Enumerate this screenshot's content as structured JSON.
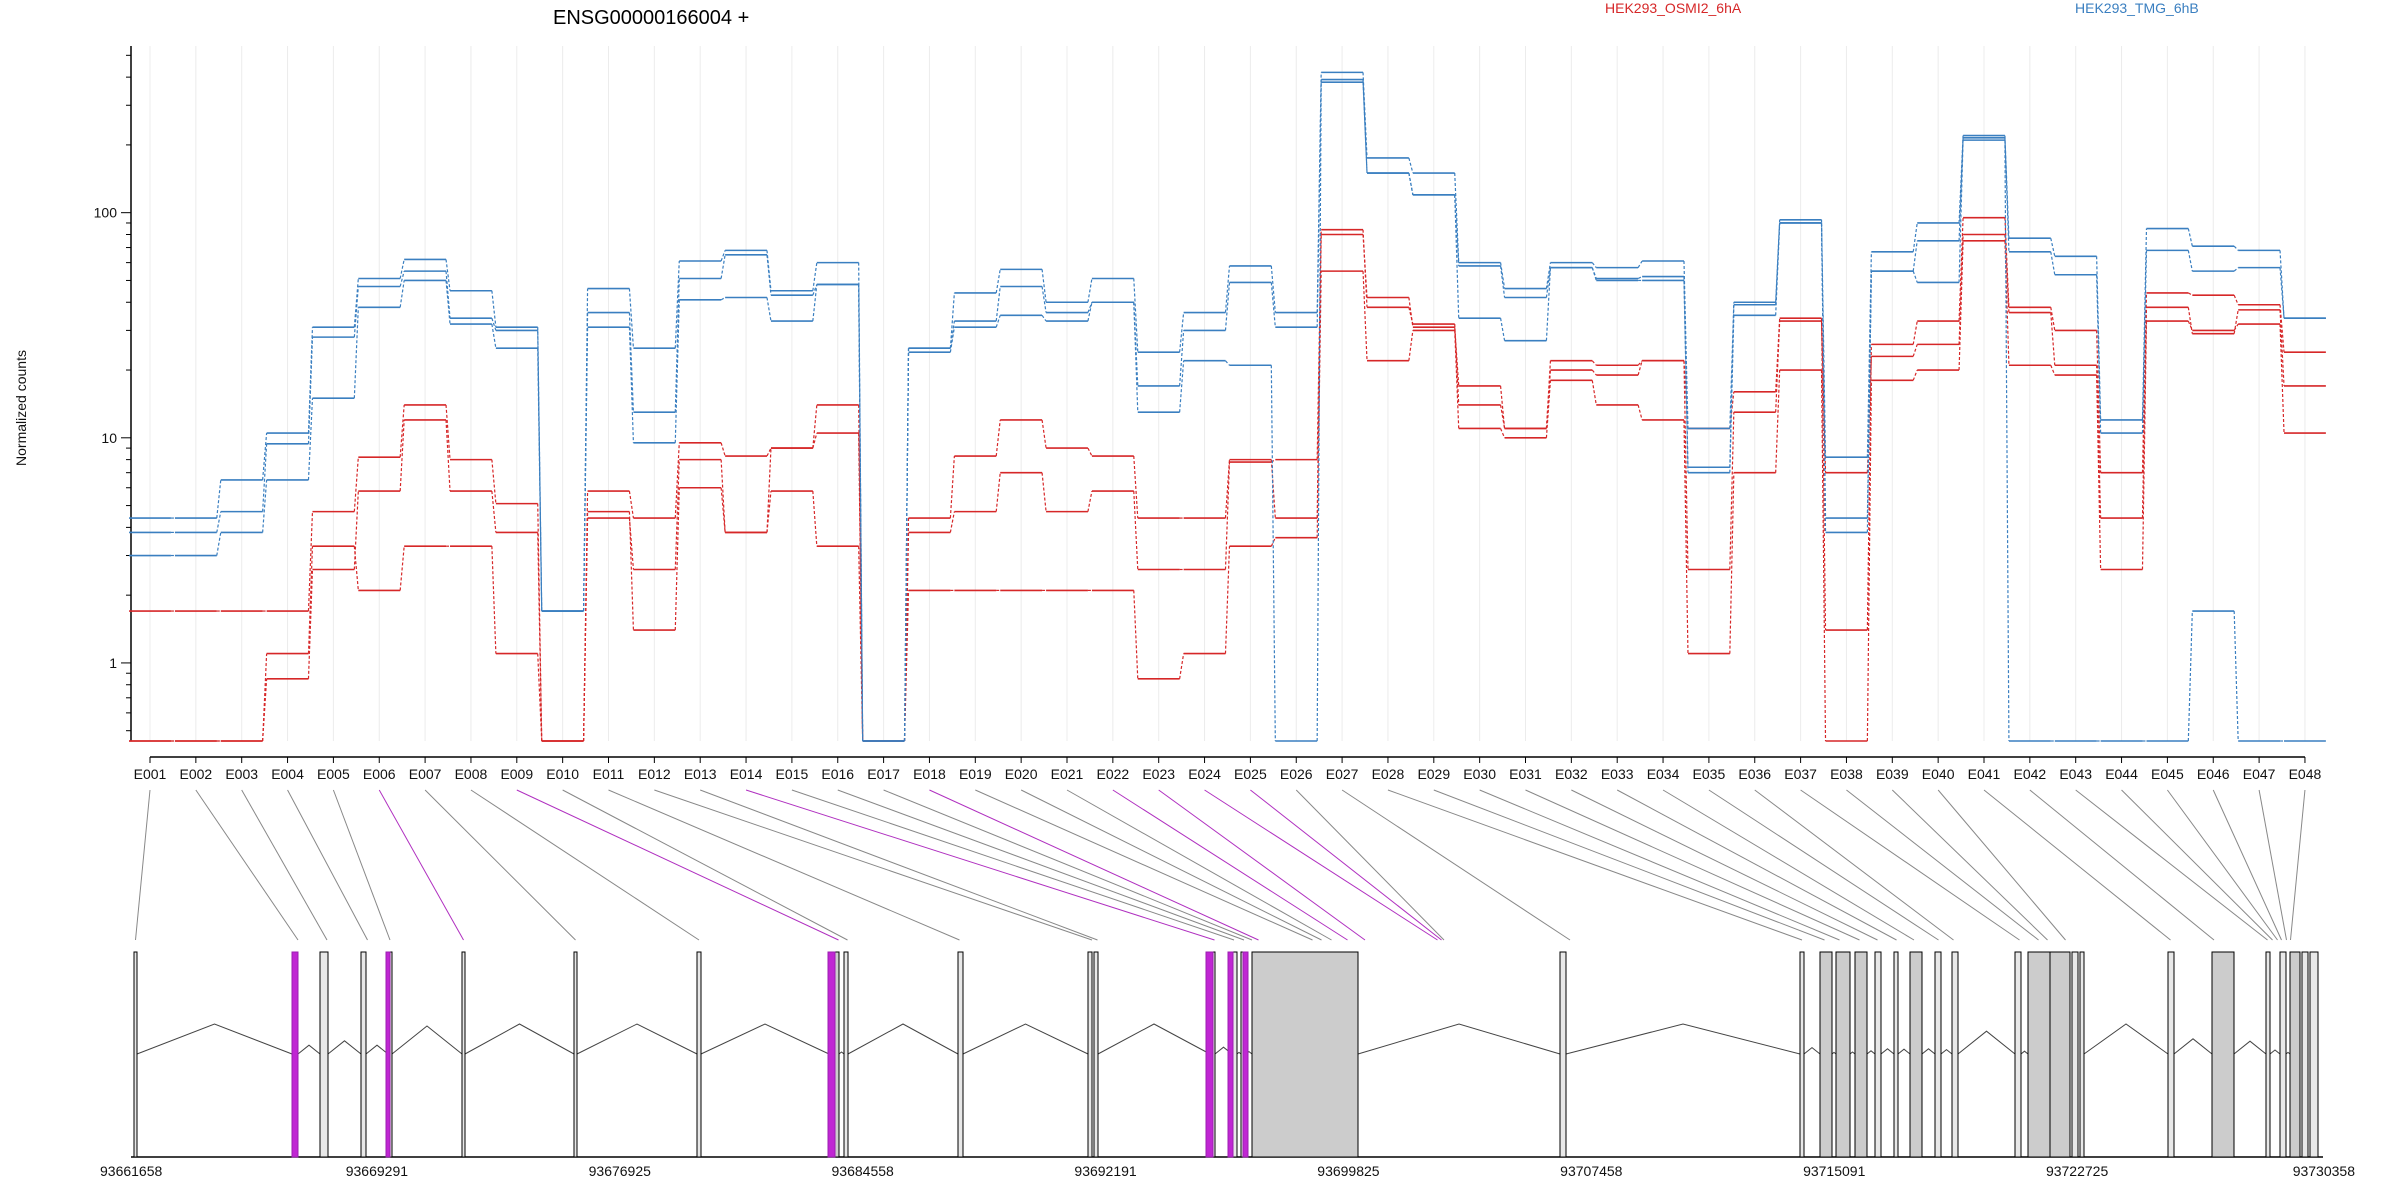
{
  "chart_data": {
    "type": "line",
    "title": "ENSG00000166004 +",
    "ylabel": "Normalized counts",
    "xlabel": "",
    "yscale": "log",
    "ylim": [
      0.45,
      550
    ],
    "yticks": [
      "1",
      "10",
      "100"
    ],
    "grid": true,
    "legend": [
      {
        "name": "HEK293_OSMI2_6hA",
        "color": "#d62728"
      },
      {
        "name": "HEK293_TMG_6hB",
        "color": "#3a7fc0"
      }
    ],
    "categories": [
      "E001",
      "E002",
      "E003",
      "E004",
      "E005",
      "E006",
      "E007",
      "E008",
      "E009",
      "E010",
      "E011",
      "E012",
      "E013",
      "E014",
      "E015",
      "E016",
      "E017",
      "E018",
      "E019",
      "E020",
      "E021",
      "E022",
      "E023",
      "E024",
      "E025",
      "E026",
      "E027",
      "E028",
      "E029",
      "E030",
      "E031",
      "E032",
      "E033",
      "E034",
      "E035",
      "E036",
      "E037",
      "E038",
      "E039",
      "E040",
      "E041",
      "E042",
      "E043",
      "E044",
      "E045",
      "E046",
      "E047",
      "E048"
    ],
    "series": [
      {
        "group": "HEK293_OSMI2_6hA",
        "color": "#d62728",
        "values": [
          0.45,
          0.45,
          0.45,
          1.1,
          3.3,
          2.1,
          3.3,
          3.3,
          1.1,
          0.45,
          4.7,
          1.4,
          6.0,
          3.8,
          5.8,
          3.3,
          0.45,
          2.1,
          2.1,
          2.1,
          2.1,
          2.1,
          0.85,
          1.1,
          3.3,
          3.6,
          55,
          22,
          30,
          11,
          10,
          18,
          14,
          12,
          1.1,
          7.0,
          20,
          0.45,
          18,
          20,
          75,
          21,
          19,
          2.6,
          33,
          30,
          32,
          10.5
        ]
      },
      {
        "group": "HEK293_OSMI2_6hA",
        "color": "#d62728",
        "values": [
          0.45,
          0.45,
          0.45,
          0.85,
          2.6,
          5.8,
          12,
          5.8,
          3.8,
          0.45,
          4.4,
          2.6,
          8.0,
          3.8,
          9.0,
          14,
          0.45,
          3.8,
          4.7,
          7.0,
          4.7,
          5.8,
          2.6,
          2.6,
          7.8,
          8.0,
          84,
          38,
          32,
          14,
          11,
          20,
          19,
          22,
          2.6,
          13,
          33,
          7.0,
          23,
          26,
          80,
          36,
          21,
          4.4,
          38,
          29,
          37,
          17
        ]
      },
      {
        "group": "HEK293_OSMI2_6hA",
        "color": "#d62728",
        "values": [
          1.7,
          1.7,
          1.7,
          1.7,
          4.7,
          8.2,
          14,
          8.0,
          5.1,
          0.45,
          5.8,
          4.4,
          9.5,
          8.3,
          9.0,
          10.5,
          0.45,
          4.4,
          8.3,
          12,
          9.0,
          8.3,
          4.4,
          4.4,
          8.0,
          4.4,
          80,
          42,
          31,
          17,
          11,
          22,
          21,
          22,
          11,
          16,
          34,
          1.4,
          26,
          33,
          95,
          38,
          30,
          7.0,
          44,
          43,
          39,
          24
        ]
      },
      {
        "group": "HEK293_TMG_6hB",
        "color": "#3a7fc0",
        "values": [
          3.0,
          3.0,
          3.8,
          6.5,
          15,
          38,
          50,
          32,
          25,
          1.7,
          31,
          9.5,
          41,
          42,
          33,
          48,
          0.45,
          24,
          31,
          35,
          33,
          40,
          13,
          22,
          21,
          0.45,
          380,
          150,
          120,
          34,
          27,
          57,
          50,
          50,
          7.0,
          35,
          90,
          4.4,
          55,
          49,
          210,
          0.45,
          0.45,
          0.45,
          0.45,
          1.7,
          0.45,
          0.45
        ]
      },
      {
        "group": "HEK293_TMG_6hB",
        "color": "#3a7fc0",
        "values": [
          3.8,
          3.8,
          4.7,
          9.4,
          28,
          47,
          55,
          34,
          30,
          1.7,
          36,
          13,
          51,
          65,
          43,
          48,
          0.45,
          25,
          33,
          47,
          36,
          40,
          17,
          30,
          49,
          31,
          390,
          150,
          120,
          58,
          42,
          57,
          51,
          52,
          7.4,
          39,
          90,
          3.8,
          55,
          75,
          215,
          67,
          53,
          10.5,
          68,
          55,
          57,
          34
        ]
      },
      {
        "group": "HEK293_TMG_6hB",
        "color": "#3a7fc0",
        "values": [
          4.4,
          4.4,
          6.5,
          10.5,
          31,
          51,
          62,
          45,
          31,
          1.7,
          46,
          25,
          61,
          68,
          45,
          60,
          0.45,
          25,
          44,
          56,
          40,
          51,
          24,
          36,
          58,
          36,
          420,
          175,
          150,
          60,
          46,
          60,
          57,
          61,
          11,
          40,
          93,
          8.2,
          67,
          90,
          220,
          77,
          64,
          12,
          85,
          71,
          68,
          34
        ]
      }
    ],
    "exon_connector_type": [
      "normal",
      "normal",
      "normal",
      "normal",
      "normal",
      "highlight",
      "normal",
      "normal",
      "highlight",
      "normal",
      "normal",
      "normal",
      "normal",
      "highlight",
      "normal",
      "normal",
      "normal",
      "highlight",
      "normal",
      "normal",
      "normal",
      "highlight",
      "highlight",
      "highlight",
      "highlight",
      "normal",
      "normal",
      "normal",
      "normal",
      "normal",
      "normal",
      "normal",
      "normal",
      "normal",
      "normal",
      "normal",
      "normal",
      "normal",
      "normal",
      "normal",
      "normal",
      "normal",
      "normal",
      "normal",
      "normal",
      "normal",
      "normal",
      "normal"
    ],
    "genomic_axis_labels": [
      "93661658",
      "93669291",
      "93676925",
      "93684558",
      "93692191",
      "93699825",
      "93707458",
      "93715091",
      "93722725",
      "93730358"
    ]
  }
}
